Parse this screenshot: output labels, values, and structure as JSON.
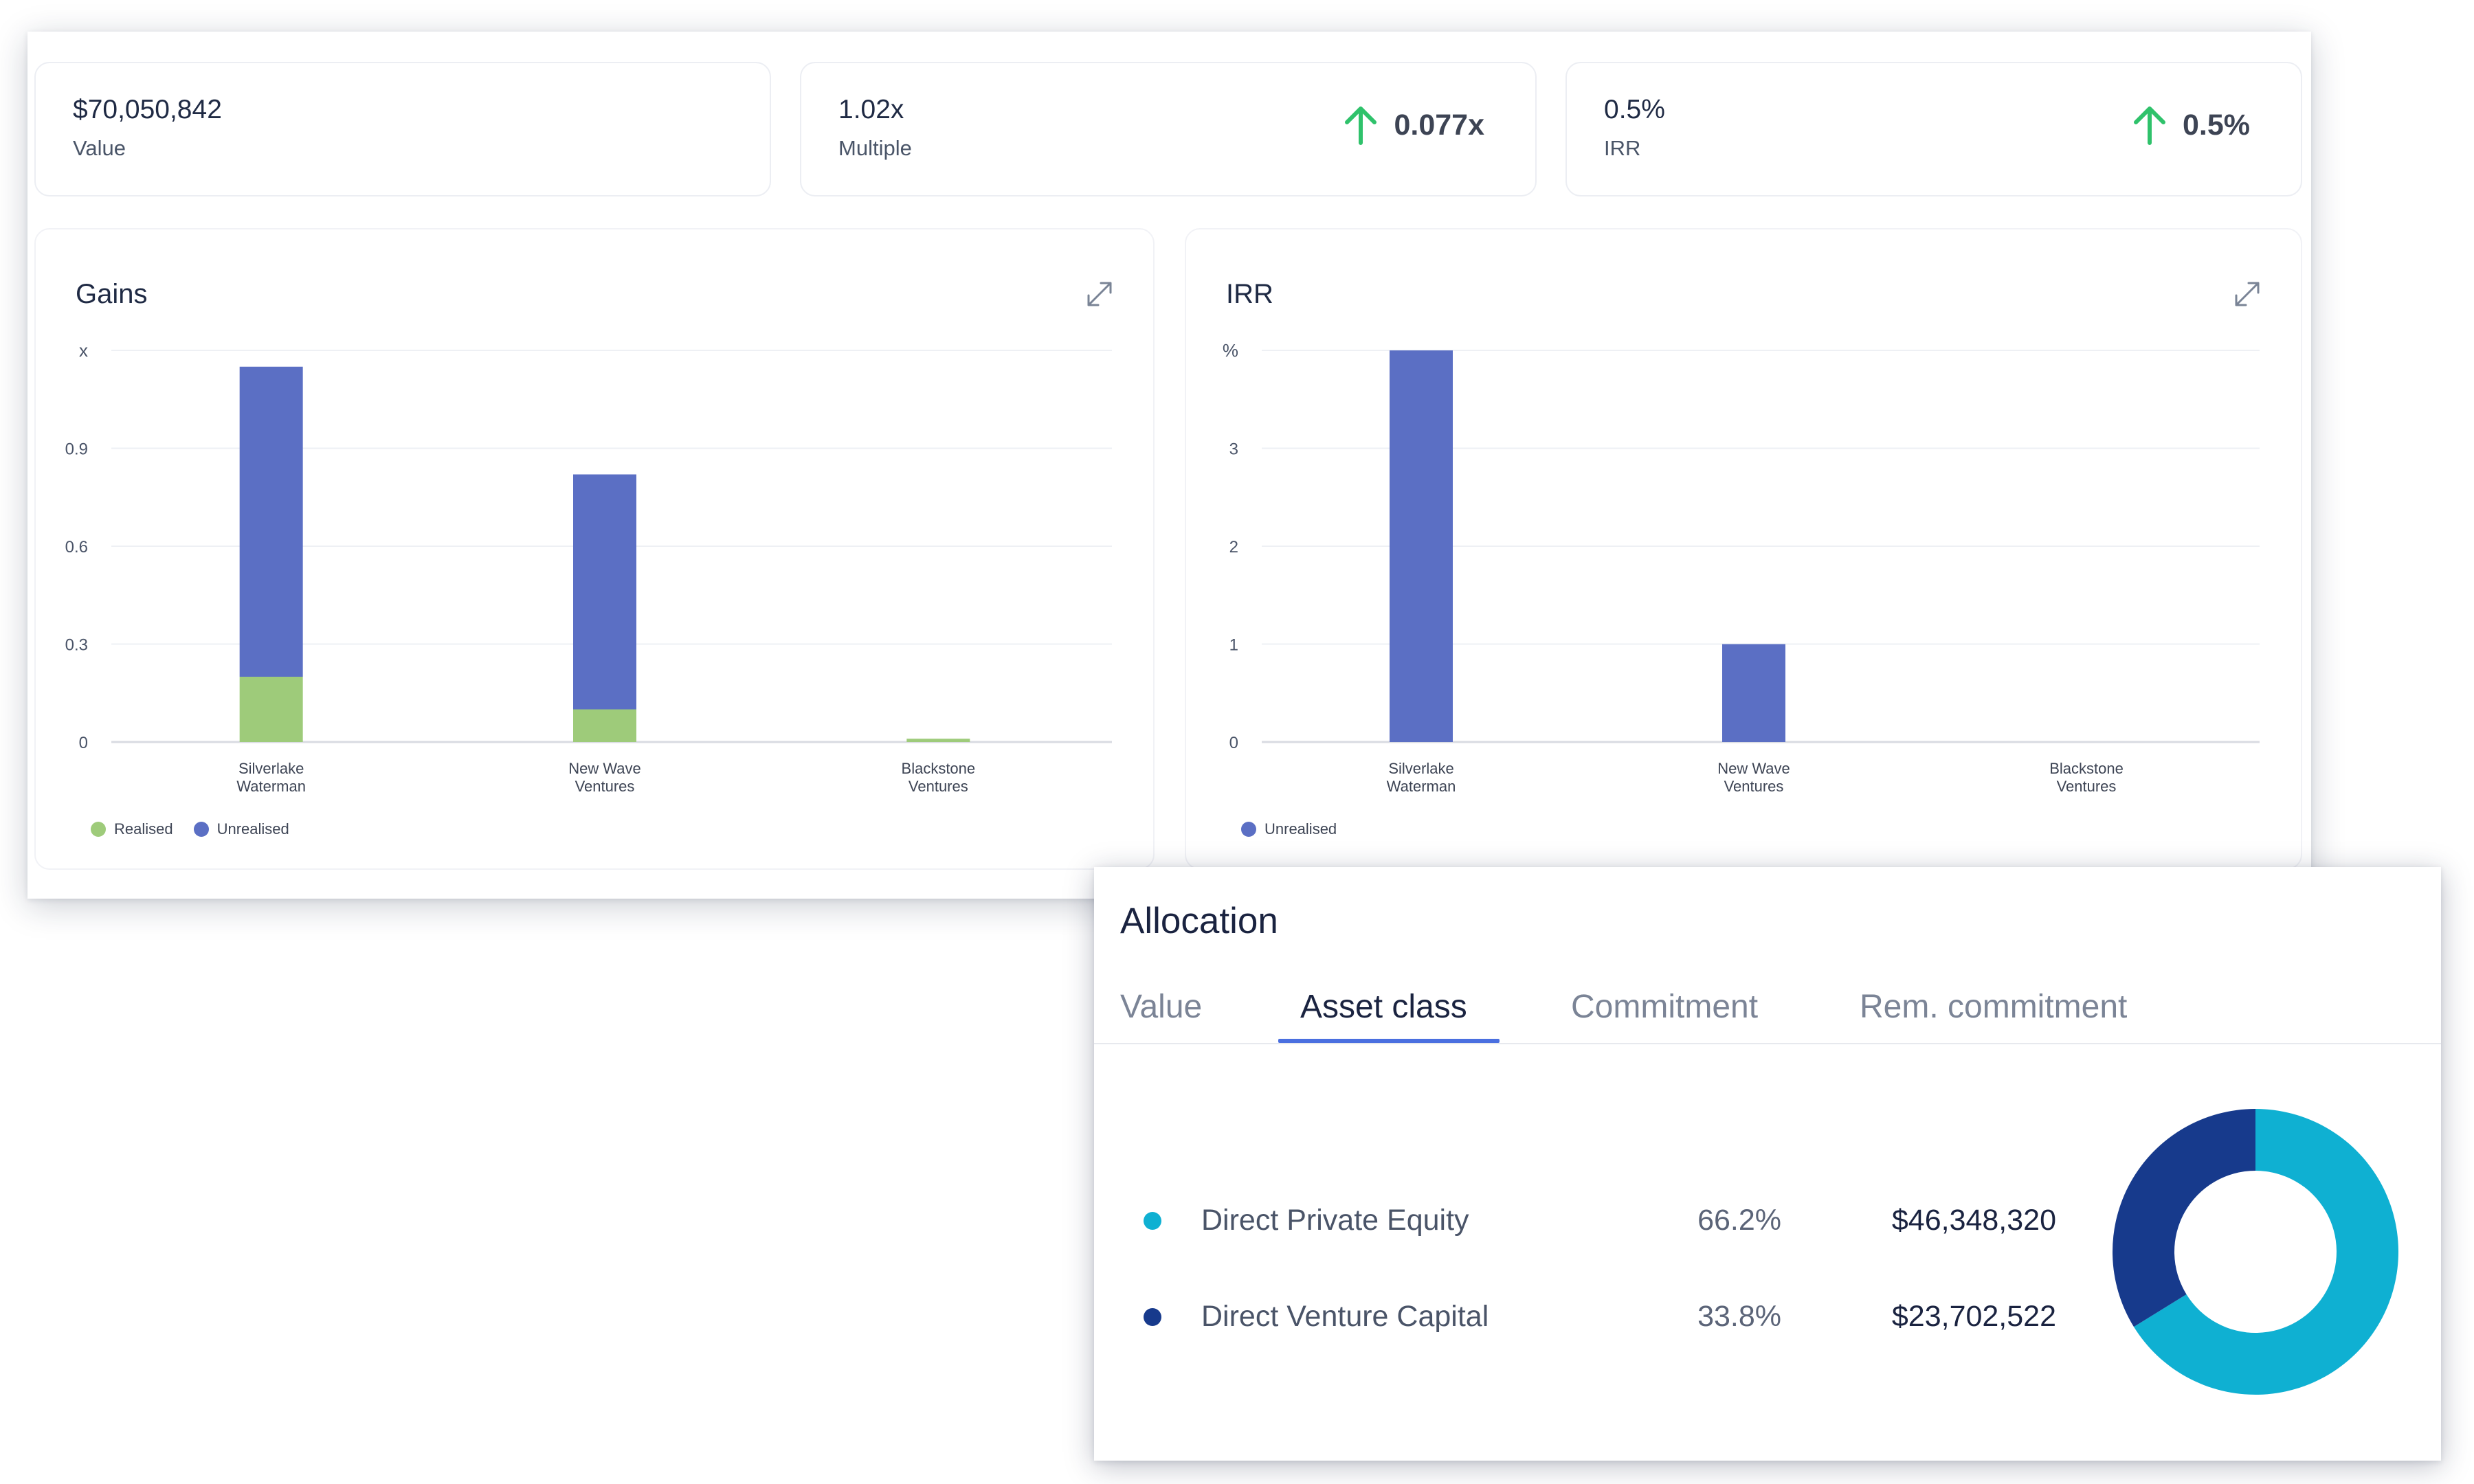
{
  "kpis": [
    {
      "value": "$70,050,842",
      "label": "Value",
      "delta": ""
    },
    {
      "value": "1.02x",
      "label": "Multiple",
      "delta": "0.077x"
    },
    {
      "value": "0.5%",
      "label": "IRR",
      "delta": "0.5%"
    }
  ],
  "colors": {
    "realised": "#9ecb7a",
    "unrealised": "#5b6fc4",
    "delta_up": "#2fc26b",
    "direct_private_equity": "#0fb0d2",
    "direct_venture_capital": "#173a8c",
    "tab_active": "#4a6fe0"
  },
  "gains": {
    "title": "Gains",
    "legend": [
      "Realised",
      "Unrealised"
    ]
  },
  "irr": {
    "title": "IRR",
    "legend": [
      "Unrealised"
    ]
  },
  "chart_data": [
    {
      "type": "bar",
      "stacked": true,
      "title": "Gains",
      "ylabel": "x",
      "ylim": [
        0,
        1.2
      ],
      "yticks": [
        0,
        0.3,
        0.6,
        0.9
      ],
      "categories": [
        "Silverlake Waterman",
        "New Wave Ventures",
        "Blackstone Ventures"
      ],
      "series": [
        {
          "name": "Realised",
          "values": [
            0.2,
            0.1,
            0.01
          ]
        },
        {
          "name": "Unrealised",
          "values": [
            0.95,
            0.72,
            0
          ]
        }
      ],
      "grid": true,
      "legend_position": "bottom-left"
    },
    {
      "type": "bar",
      "title": "IRR",
      "ylabel": "%",
      "ylim": [
        0,
        4
      ],
      "yticks": [
        0,
        1,
        2,
        3
      ],
      "categories": [
        "Silverlake Waterman",
        "New Wave Ventures",
        "Blackstone Ventures"
      ],
      "series": [
        {
          "name": "Unrealised",
          "values": [
            4.0,
            1.0,
            0
          ]
        }
      ],
      "grid": true,
      "legend_position": "bottom-left"
    },
    {
      "type": "pie",
      "donut": true,
      "title": "Allocation",
      "categories": [
        "Direct Private Equity",
        "Direct Venture Capital"
      ],
      "values": [
        66.2,
        33.8
      ]
    }
  ],
  "allocation": {
    "title": "Allocation",
    "tabs": [
      "Value",
      "Asset class",
      "Commitment",
      "Rem. commitment"
    ],
    "active_tab": 1,
    "rows": [
      {
        "name": "Direct Private Equity",
        "pct": "66.2%",
        "amount": "$46,348,320"
      },
      {
        "name": "Direct Venture Capital",
        "pct": "33.8%",
        "amount": "$23,702,522"
      }
    ]
  }
}
